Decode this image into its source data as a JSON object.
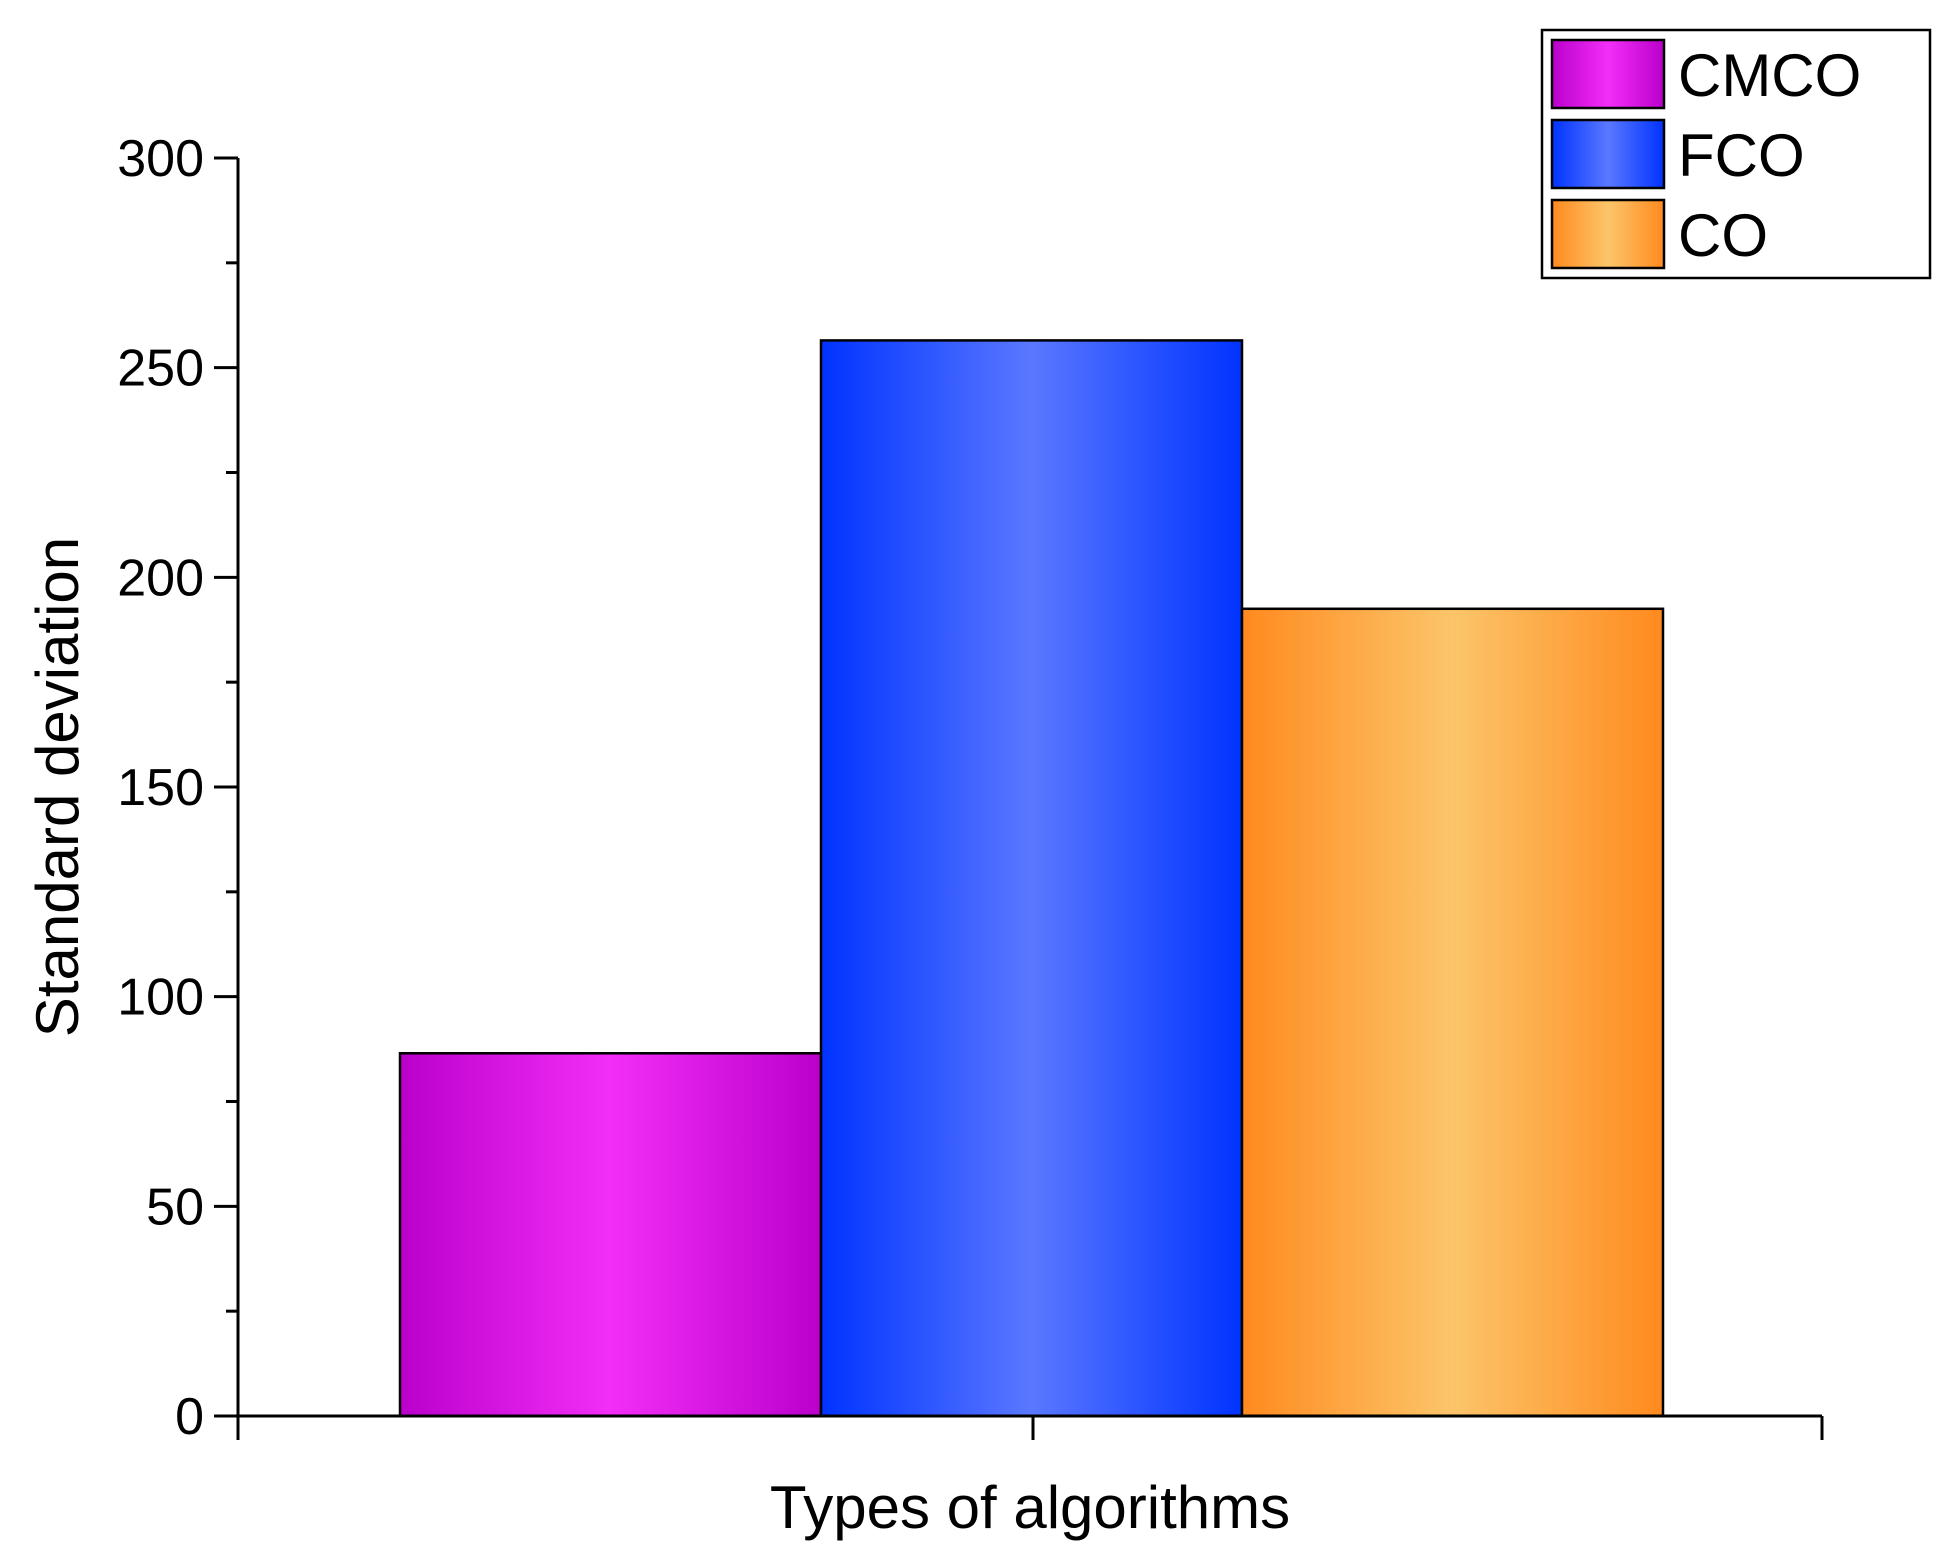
{
  "chart_data": {
    "type": "bar",
    "title": "",
    "xlabel": "Types of algorithms",
    "ylabel": "Standard deviation",
    "ylim": [
      0,
      300
    ],
    "yticks": [
      0,
      50,
      100,
      150,
      200,
      250,
      300
    ],
    "grid": false,
    "legend_position": "top-right",
    "categories": [
      ""
    ],
    "series": [
      {
        "name": "CMCO",
        "values": [
          86.5
        ],
        "color": "#f22ef7",
        "color_edge": "#bb00cc"
      },
      {
        "name": "FCO",
        "values": [
          256.5
        ],
        "color": "#5a78ff",
        "color_edge": "#0033ff"
      },
      {
        "name": "CO",
        "values": [
          192.5
        ],
        "color": "#fcc56a",
        "color_edge": "#ff8a1e"
      }
    ]
  }
}
